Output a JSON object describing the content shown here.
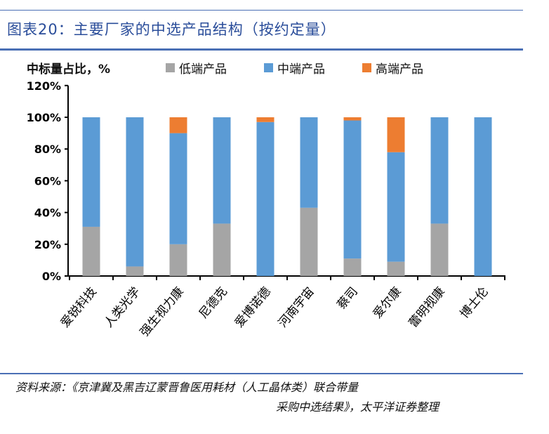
{
  "title": "图表20：主要厂家的中选产品结构（按约定量）",
  "source_line1": "资料来源：《京津冀及黑吉辽蒙晋鲁医用耗材（人工晶体类）联合带量",
  "source_line2": "采购中选结果》，太平洋证券整理",
  "colors": {
    "rule": "#4a6fb5",
    "low": "#a5a5a5",
    "mid": "#5b9bd5",
    "high": "#ed7d31"
  },
  "chart_data": {
    "type": "bar",
    "stacked": true,
    "ylabel": "中标量占比，%",
    "ylim": [
      0,
      120
    ],
    "yticks": [
      "0%",
      "20%",
      "40%",
      "60%",
      "80%",
      "100%",
      "120%"
    ],
    "legend_placement": "top",
    "categories": [
      "爱锐科技",
      "人类光学",
      "强生视力康",
      "尼德克",
      "爱博诺德",
      "河南宇宙",
      "蔡司",
      "爱尔康",
      "蕾明视康",
      "博士伦"
    ],
    "series": [
      {
        "name": "低端产品",
        "color": "#a5a5a5",
        "values": [
          31,
          6,
          20,
          33,
          0,
          43,
          11,
          9,
          33,
          0
        ]
      },
      {
        "name": "中端产品",
        "color": "#5b9bd5",
        "values": [
          69,
          94,
          70,
          67,
          97,
          57,
          87,
          69,
          67,
          100
        ]
      },
      {
        "name": "高端产品",
        "color": "#ed7d31",
        "values": [
          0,
          0,
          10,
          0,
          3,
          0,
          2,
          22,
          0,
          0
        ]
      }
    ]
  }
}
